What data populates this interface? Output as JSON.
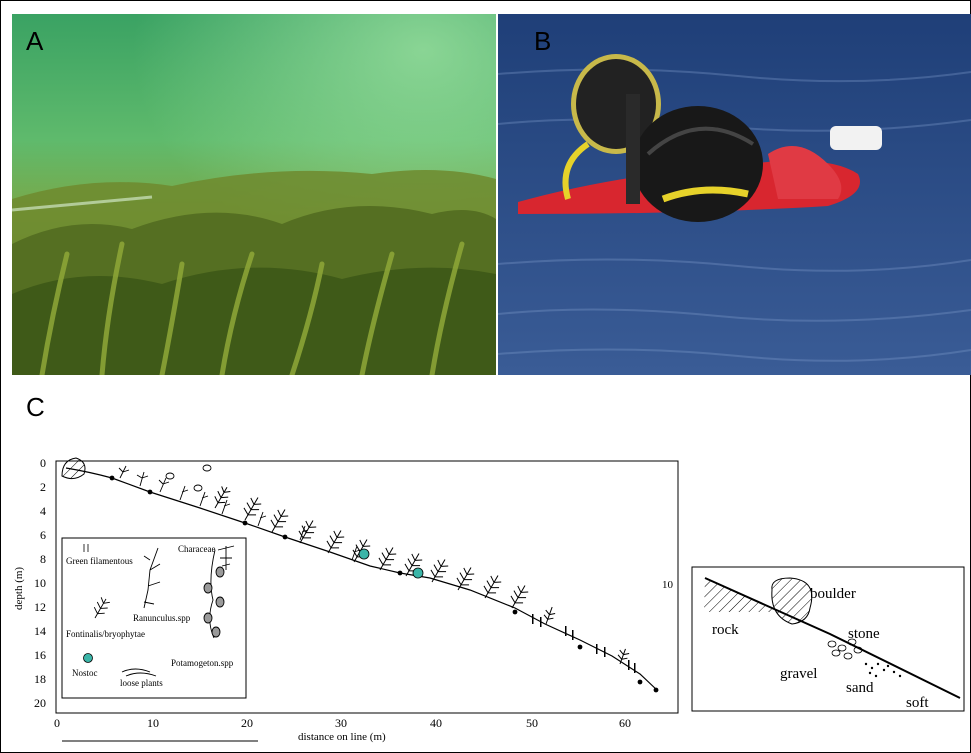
{
  "panels": {
    "a_label": "A",
    "b_label": "B",
    "c_label": "C"
  },
  "profile": {
    "y_axis_label": "depth (m)",
    "x_axis_label": "distance on line (m)",
    "y_ticks": [
      "0",
      "2",
      "4",
      "6",
      "8",
      "10",
      "12",
      "14",
      "16",
      "18",
      "20"
    ],
    "x_ticks": [
      "0",
      "10",
      "20",
      "30",
      "40",
      "50",
      "60"
    ],
    "right_tick": "10",
    "legend": {
      "green_filamentous": "Green filamentous",
      "ranunculus": "Ranunculus.spp",
      "characeae": "Characeae",
      "fontinalis": "Fontinalis/bryophytae",
      "potamogeton": "Potamogeton.spp",
      "nostoc": "Nostoc",
      "loose_plants": "loose plants"
    }
  },
  "substrate": {
    "boulder": "boulder",
    "rock": "rock",
    "stone": "stone",
    "gravel": "gravel",
    "sand": "sand",
    "soft": "soft"
  },
  "colors": {
    "nostoc": "#3bb5a8",
    "underwater_green": "#5fae4a",
    "water_blue": "#2a4f8c",
    "drysuit_red": "#d8262f",
    "helmet_yellow": "#e6d22a"
  }
}
